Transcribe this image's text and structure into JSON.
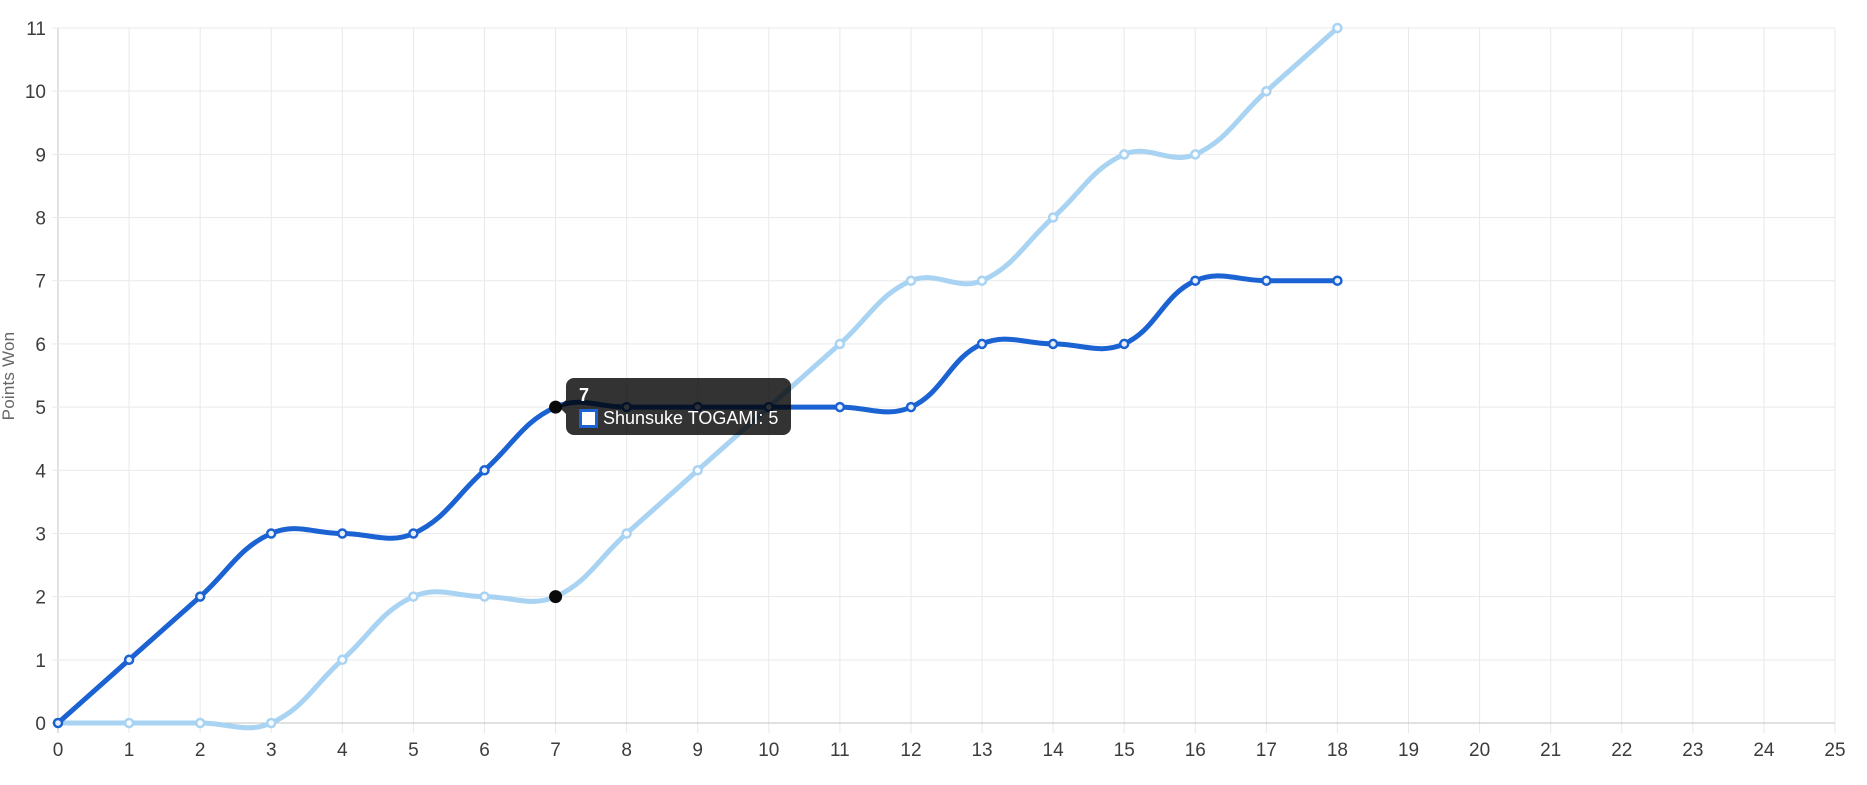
{
  "tooltip": {
    "title": "7",
    "items": [
      {
        "label": "Shunsuke TOGAMI: 5",
        "swatch_fill": "#ffffff",
        "swatch_border": "#1b62d2"
      }
    ],
    "bg": "rgba(0,0,0,0.8)"
  },
  "chart_data": {
    "type": "line",
    "title": "",
    "xlabel": "",
    "ylabel": "Points Won",
    "xlim": [
      0,
      25
    ],
    "ylim": [
      0,
      11
    ],
    "x_ticks": [
      0,
      1,
      2,
      3,
      4,
      5,
      6,
      7,
      8,
      9,
      10,
      11,
      12,
      13,
      14,
      15,
      16,
      17,
      18,
      19,
      20,
      21,
      22,
      23,
      24,
      25
    ],
    "y_ticks": [
      0,
      1,
      2,
      3,
      4,
      5,
      6,
      7,
      8,
      9,
      10,
      11
    ],
    "grid": true,
    "legend_position": "none",
    "curve_tension": 0.4,
    "x": [
      0,
      1,
      2,
      3,
      4,
      5,
      6,
      7,
      8,
      9,
      10,
      11,
      12,
      13,
      14,
      15,
      16,
      17,
      18
    ],
    "series": [
      {
        "name": "",
        "color": "#a9d3f2",
        "values": [
          0,
          0,
          0,
          0,
          1,
          2,
          2,
          2,
          3,
          4,
          5,
          6,
          7,
          7,
          8,
          9,
          9,
          10,
          11
        ]
      },
      {
        "name": "Shunsuke TOGAMI",
        "color": "#1b62d2",
        "values": [
          0,
          1,
          2,
          3,
          3,
          3,
          4,
          5,
          5,
          5,
          5,
          5,
          5,
          6,
          6,
          6,
          7,
          7,
          7
        ]
      }
    ],
    "highlight": {
      "x": 7,
      "points": [
        {
          "x": 7,
          "y": 5
        },
        {
          "x": 7,
          "y": 2
        }
      ],
      "color": "#0a0a0a"
    }
  },
  "colors": {
    "grid": "#e9e9e9",
    "axis_edge": "#c3c3c3",
    "tick_text": "#3d3d3d",
    "axis_label_text": "#666666",
    "point_fill": "#ffffff"
  }
}
